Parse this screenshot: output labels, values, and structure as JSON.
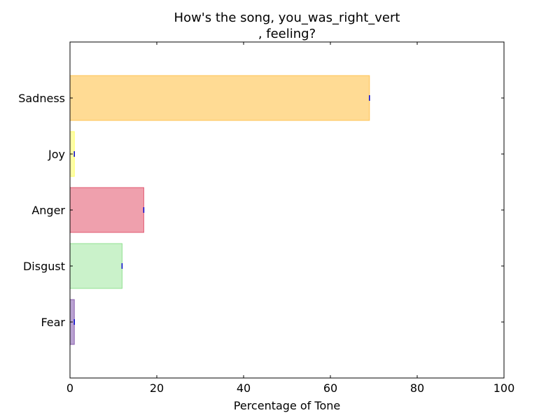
{
  "chart_data": {
    "type": "bar",
    "orientation": "horizontal",
    "title_lines": [
      "How's the song, you_was_right_vert",
      ", feeling?"
    ],
    "xlabel": "Percentage of Tone",
    "ylabel": "",
    "xlim": [
      0,
      100
    ],
    "x_ticks": [
      0,
      20,
      40,
      60,
      80,
      100
    ],
    "x_tick_labels": [
      "0",
      "20",
      "40",
      "60",
      "80",
      "100"
    ],
    "categories": [
      "Fear",
      "Disgust",
      "Anger",
      "Joy",
      "Sadness"
    ],
    "values": [
      1,
      12,
      17,
      1,
      69
    ],
    "colors": [
      "#9b7bbd",
      "#b4ecb4",
      "#e8778a",
      "#ffff80",
      "#ffcc66"
    ],
    "edge_colors": [
      "#8a5fb0",
      "#90e090",
      "#e05a72",
      "#ffff66",
      "#ffc355"
    ],
    "grid": false,
    "legend": "none"
  }
}
